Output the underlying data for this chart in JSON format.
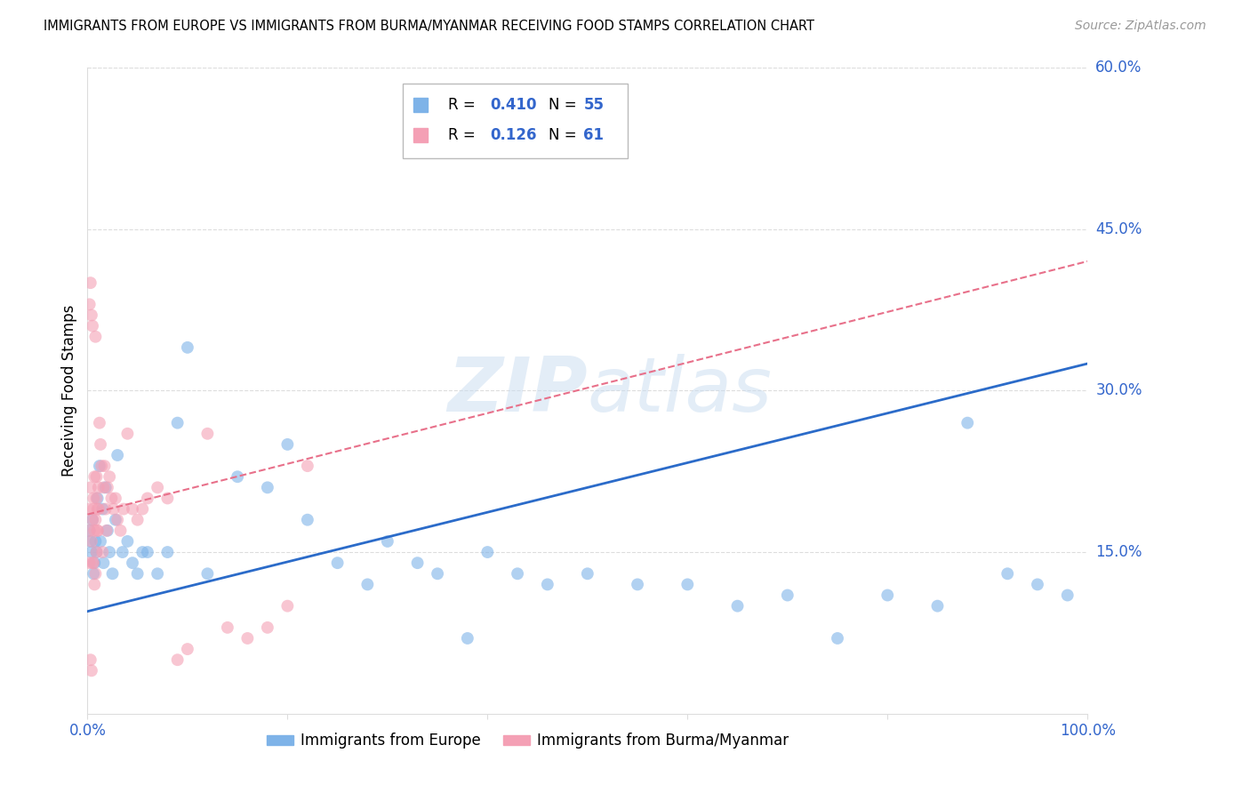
{
  "title": "IMMIGRANTS FROM EUROPE VS IMMIGRANTS FROM BURMA/MYANMAR RECEIVING FOOD STAMPS CORRELATION CHART",
  "source": "Source: ZipAtlas.com",
  "ylabel": "Receiving Food Stamps",
  "xlim": [
    0,
    1.0
  ],
  "ylim": [
    0,
    0.6
  ],
  "ytick_labels_right": [
    "60.0%",
    "45.0%",
    "30.0%",
    "15.0%"
  ],
  "ytick_values_right": [
    0.6,
    0.45,
    0.3,
    0.15
  ],
  "blue_color": "#7EB3E8",
  "pink_color": "#F4A0B5",
  "trend_blue": "#2B6BC9",
  "trend_pink": "#E8708A",
  "watermark_color": "#C8DCF0",
  "axis_color": "#3366CC",
  "grid_color": "#DDDDDD",
  "blue_scatter_x": [
    0.002,
    0.003,
    0.004,
    0.005,
    0.006,
    0.007,
    0.008,
    0.009,
    0.01,
    0.012,
    0.013,
    0.015,
    0.016,
    0.018,
    0.02,
    0.022,
    0.025,
    0.028,
    0.03,
    0.035,
    0.04,
    0.045,
    0.05,
    0.055,
    0.06,
    0.07,
    0.08,
    0.09,
    0.1,
    0.12,
    0.15,
    0.18,
    0.2,
    0.22,
    0.25,
    0.28,
    0.3,
    0.33,
    0.35,
    0.38,
    0.4,
    0.43,
    0.46,
    0.5,
    0.55,
    0.6,
    0.65,
    0.7,
    0.75,
    0.8,
    0.85,
    0.88,
    0.92,
    0.95,
    0.98
  ],
  "blue_scatter_y": [
    0.17,
    0.16,
    0.15,
    0.18,
    0.13,
    0.14,
    0.16,
    0.15,
    0.2,
    0.23,
    0.16,
    0.19,
    0.14,
    0.21,
    0.17,
    0.15,
    0.13,
    0.18,
    0.24,
    0.15,
    0.16,
    0.14,
    0.13,
    0.15,
    0.15,
    0.13,
    0.15,
    0.27,
    0.34,
    0.13,
    0.22,
    0.21,
    0.25,
    0.18,
    0.14,
    0.12,
    0.16,
    0.14,
    0.13,
    0.07,
    0.15,
    0.13,
    0.12,
    0.13,
    0.12,
    0.12,
    0.1,
    0.11,
    0.07,
    0.11,
    0.1,
    0.27,
    0.13,
    0.12,
    0.11
  ],
  "pink_scatter_x": [
    0.001,
    0.002,
    0.002,
    0.003,
    0.003,
    0.004,
    0.004,
    0.005,
    0.005,
    0.006,
    0.006,
    0.007,
    0.007,
    0.008,
    0.008,
    0.009,
    0.009,
    0.01,
    0.01,
    0.011,
    0.012,
    0.013,
    0.014,
    0.015,
    0.016,
    0.017,
    0.018,
    0.019,
    0.02,
    0.022,
    0.024,
    0.026,
    0.028,
    0.03,
    0.033,
    0.036,
    0.04,
    0.045,
    0.05,
    0.055,
    0.06,
    0.07,
    0.08,
    0.09,
    0.1,
    0.12,
    0.14,
    0.16,
    0.18,
    0.2,
    0.22,
    0.002,
    0.003,
    0.004,
    0.005,
    0.006,
    0.007,
    0.008,
    0.009,
    0.01,
    0.011
  ],
  "pink_scatter_y": [
    0.19,
    0.17,
    0.14,
    0.21,
    0.05,
    0.16,
    0.04,
    0.18,
    0.14,
    0.2,
    0.19,
    0.22,
    0.17,
    0.35,
    0.18,
    0.2,
    0.22,
    0.19,
    0.17,
    0.21,
    0.27,
    0.25,
    0.23,
    0.15,
    0.21,
    0.23,
    0.19,
    0.17,
    0.21,
    0.22,
    0.2,
    0.19,
    0.2,
    0.18,
    0.17,
    0.19,
    0.26,
    0.19,
    0.18,
    0.19,
    0.2,
    0.21,
    0.2,
    0.05,
    0.06,
    0.26,
    0.08,
    0.07,
    0.08,
    0.1,
    0.23,
    0.38,
    0.4,
    0.37,
    0.36,
    0.14,
    0.12,
    0.13,
    0.15,
    0.17,
    0.19
  ],
  "blue_trend_x": [
    0.0,
    1.0
  ],
  "blue_trend_y": [
    0.095,
    0.325
  ],
  "pink_trend_x": [
    0.0,
    1.0
  ],
  "pink_trend_y": [
    0.185,
    0.42
  ]
}
